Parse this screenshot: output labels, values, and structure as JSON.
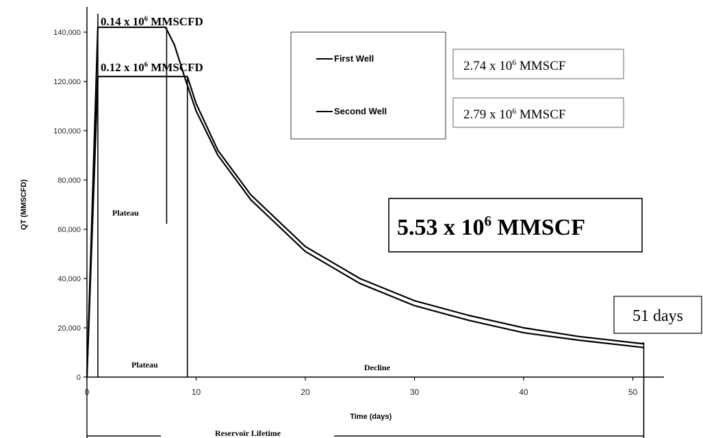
{
  "chart_data": {
    "type": "line",
    "xlabel": "Time (days)",
    "ylabel": "QT (MMSCFD)",
    "xlim": [
      0,
      52
    ],
    "ylim": [
      0,
      150000
    ],
    "x_ticks": [
      "0",
      "10",
      "20",
      "30",
      "40",
      "50"
    ],
    "y_ticks": [
      "0",
      "20,000",
      "40,000",
      "60,000",
      "80,000",
      "100,000",
      "120,000",
      "140,000"
    ],
    "series": [
      {
        "name": "First Well",
        "x": [
          0,
          1,
          7.2,
          8,
          9,
          10,
          12,
          15,
          20,
          25,
          30,
          35,
          40,
          45,
          51
        ],
        "y": [
          0,
          142000,
          142000,
          135000,
          121000,
          108000,
          90000,
          72000,
          51000,
          38000,
          29000,
          23000,
          18000,
          15000,
          12000
        ]
      },
      {
        "name": "Second Well",
        "x": [
          0,
          1,
          9.2,
          10,
          12,
          15,
          20,
          25,
          30,
          35,
          40,
          45,
          51
        ],
        "y": [
          0,
          122000,
          122000,
          111000,
          92000,
          74000,
          53000,
          40000,
          31000,
          25000,
          20000,
          16500,
          13500
        ]
      }
    ],
    "legend": [
      {
        "label": "First Well",
        "total": "2.74 x 10",
        "exp": "6",
        "unit": " MMSCF"
      },
      {
        "label": "Second Well",
        "total": "2.79 x 10",
        "exp": "6",
        "unit": " MMSCF"
      }
    ],
    "annotations": {
      "rate_first": {
        "mant": "0.14 x 10",
        "exp": "6",
        "unit": " MMSCFD"
      },
      "rate_second": {
        "mant": "0.12 x 10",
        "exp": "6",
        "unit": " MMSCFD"
      },
      "total": {
        "mant": "5.53 x 10",
        "exp": "6",
        "unit": " MMSCF"
      },
      "days": "51 days",
      "plateau_upper": "Plateau",
      "plateau_lower": "Plateau",
      "decline": "Decline",
      "lifetime": "Reservoir Lifetime"
    }
  }
}
